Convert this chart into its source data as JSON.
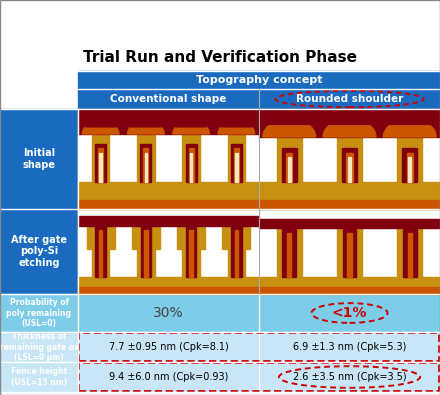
{
  "title": "Trial Run and Verification Phase",
  "header_top": "Topography concept",
  "header_left": "Conventional shape",
  "header_right": "Rounded shoulder",
  "row_labels": [
    "Initial\nshape",
    "After gate\npoly-Si\netching",
    "Probability of\npoly remaining\n(USL=0)",
    "Thickness of\nremaining gate ox\n(LSL=0 μm)",
    "Fence height\n(USL=15 nm)"
  ],
  "data_left": [
    "30%",
    "7.7 ±0.95 nm (Cpk=8.1)",
    "9.4 ±6.0 nm (Cpk=0.93)"
  ],
  "data_right": [
    "<1%",
    "6.9 ±1.3 nm (Cpk=5.3)",
    "2.6 ±3.5 nm (Cpk=3.5)"
  ],
  "blue_header": "#1A6BBF",
  "blue_label": "#1A6BBF",
  "light_blue": "#7ECDE8",
  "very_light_blue": "#C8E6F5",
  "c_dark_red": "#800010",
  "c_orange": "#CC5500",
  "c_gold": "#C89010",
  "c_tan": "#D4A840",
  "c_cream": "#F5E8C0",
  "c_light_tan": "#E8C870",
  "c_pale": "#F0DCA0",
  "dashed_red": "#CC0000",
  "white": "#FFFFFF"
}
